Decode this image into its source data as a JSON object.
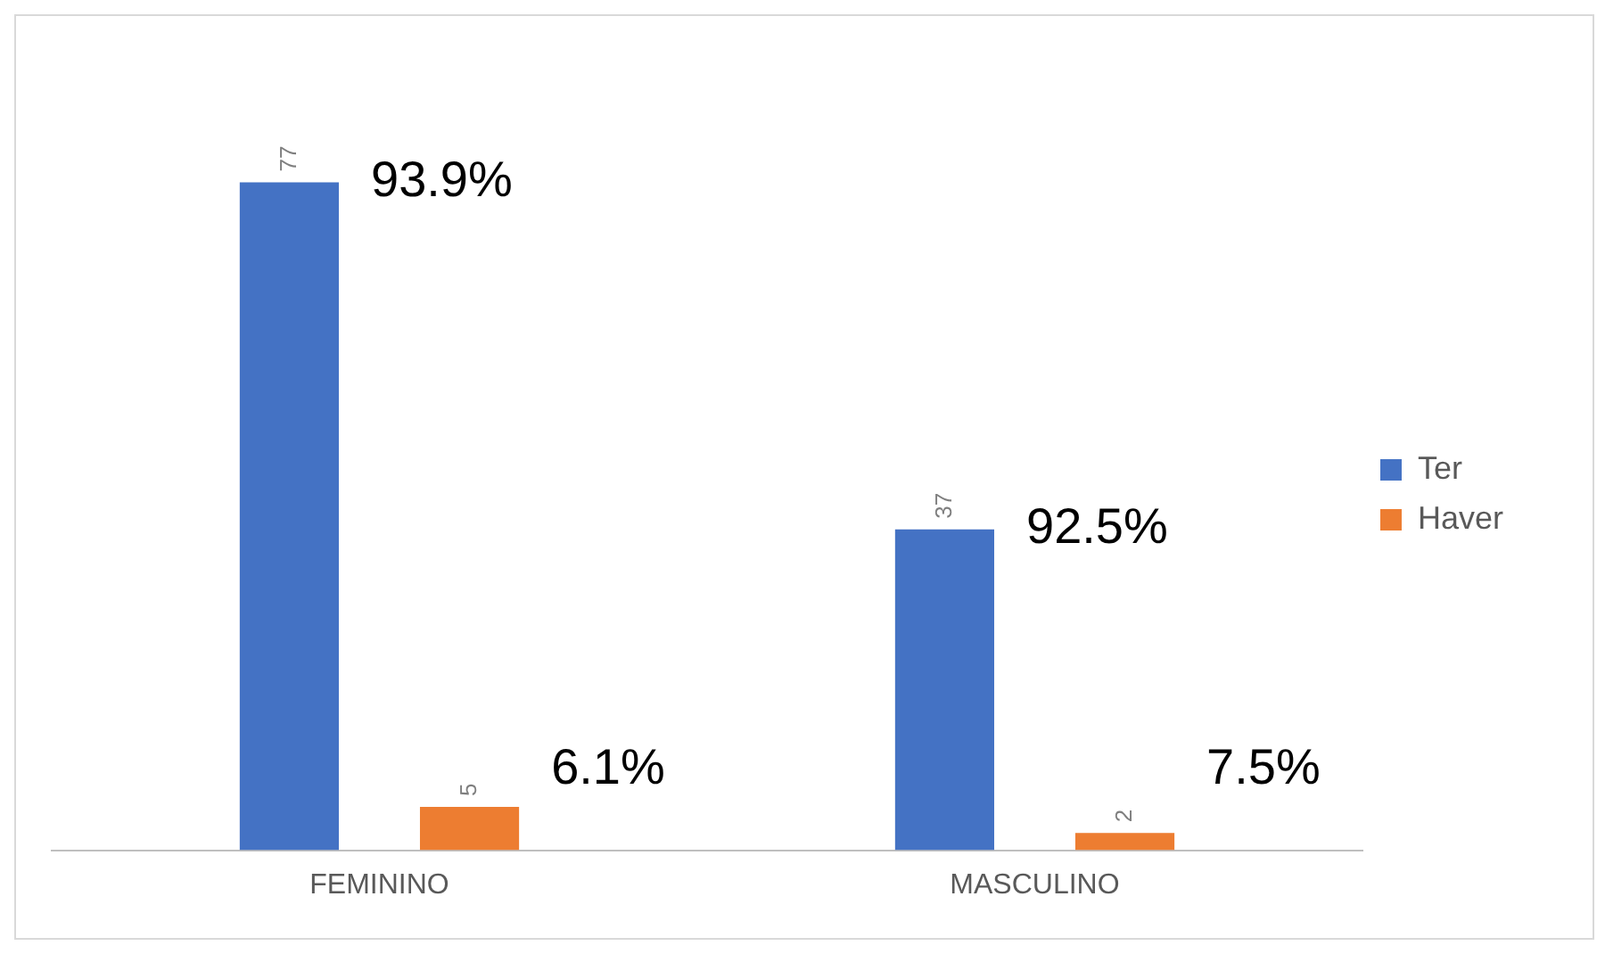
{
  "chart_data": {
    "type": "bar",
    "categories": [
      "FEMININO",
      "MASCULINO"
    ],
    "series": [
      {
        "name": "Ter",
        "color": "#4472c4",
        "values": [
          77,
          37
        ]
      },
      {
        "name": "Haver",
        "color": "#ed7d31",
        "values": [
          5,
          2
        ]
      }
    ],
    "data_labels": true,
    "legend": "right",
    "grid": false,
    "annotations": [
      "93.9%",
      "6.1%",
      "92.5%",
      "7.5%"
    ]
  }
}
